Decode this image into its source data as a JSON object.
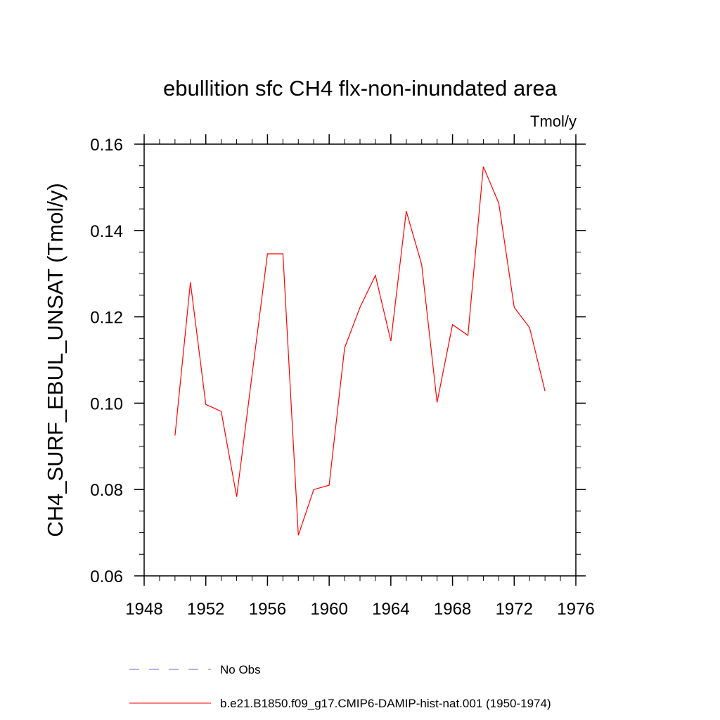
{
  "chart_data": {
    "type": "line",
    "title": "ebullition sfc CH4 flx-non-inundated area",
    "units_label": "Tmol/y",
    "ylabel": "CH4_SURF_EBUL_UNSAT  (Tmol/y)",
    "xlabel": "",
    "xlim": [
      1948,
      1976
    ],
    "ylim": [
      0.06,
      0.16
    ],
    "xticks": [
      1948,
      1952,
      1956,
      1960,
      1964,
      1968,
      1972,
      1976
    ],
    "xtick_labels": [
      "1948",
      "1952",
      "1956",
      "1960",
      "1964",
      "1968",
      "1972",
      "1976"
    ],
    "yticks": [
      0.06,
      0.08,
      0.1,
      0.12,
      0.14,
      0.16
    ],
    "ytick_labels": [
      "0.06",
      "0.08",
      "0.10",
      "0.12",
      "0.14",
      "0.16"
    ],
    "x_minor_step": 1,
    "y_minor_step": 0.005,
    "grid": false,
    "legend_position": "bottom",
    "legend": [
      {
        "name": "No Obs",
        "color": "#6a6ad0",
        "style": "dashed"
      },
      {
        "name": "b.e21.B1850.f09_g17.CMIP6-DAMIP-hist-nat.001 (1950-1974)",
        "color": "#ff0000",
        "style": "solid"
      }
    ],
    "series": [
      {
        "name": "b.e21.B1850.f09_g17.CMIP6-DAMIP-hist-nat.001 (1950-1974)",
        "color": "#ff0000",
        "x": [
          1950,
          1951,
          1952,
          1953,
          1954,
          1955,
          1956,
          1957,
          1958,
          1959,
          1960,
          1961,
          1962,
          1963,
          1964,
          1965,
          1966,
          1967,
          1968,
          1969,
          1970,
          1971,
          1972,
          1973,
          1974
        ],
        "values": [
          0.0925,
          0.128,
          0.0997,
          0.0981,
          0.0783,
          0.1066,
          0.1346,
          0.1346,
          0.0694,
          0.08,
          0.081,
          0.1128,
          0.1222,
          0.1296,
          0.1144,
          0.1445,
          0.1321,
          0.1002,
          0.1182,
          0.1157,
          0.1548,
          0.1463,
          0.1222,
          0.1175,
          0.1028
        ]
      }
    ]
  }
}
